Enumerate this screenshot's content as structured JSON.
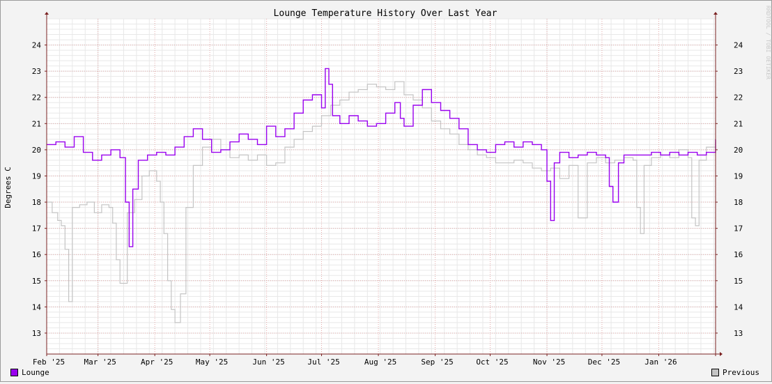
{
  "chart_data": {
    "type": "line",
    "title": "Lounge Temperature History Over Last Year",
    "ylabel": "Degrees C",
    "watermark": "RRDTOOL / TOBI OETIKER",
    "ylim": [
      12.2,
      25.0
    ],
    "xlim": [
      0,
      365
    ],
    "yticks": [
      13,
      14,
      15,
      16,
      17,
      18,
      19,
      20,
      21,
      22,
      23,
      24
    ],
    "xticks": [
      {
        "day": 0,
        "label": "Feb '25"
      },
      {
        "day": 28,
        "label": "Mar '25"
      },
      {
        "day": 59,
        "label": "Apr '25"
      },
      {
        "day": 89,
        "label": "May '25"
      },
      {
        "day": 120,
        "label": "Jun '25"
      },
      {
        "day": 150,
        "label": "Jul '25"
      },
      {
        "day": 181,
        "label": "Aug '25"
      },
      {
        "day": 212,
        "label": "Sep '25"
      },
      {
        "day": 242,
        "label": "Oct '25"
      },
      {
        "day": 273,
        "label": "Nov '25"
      },
      {
        "day": 303,
        "label": "Dec '25"
      },
      {
        "day": 334,
        "label": "Jan '26"
      }
    ],
    "colors": {
      "lounge": "#9900ee",
      "previous": "#c4c4c4",
      "major_grid": "#e3a7a7",
      "minor_grid": "#e8e8e8",
      "axis": "#7a2020"
    },
    "series": [
      {
        "name": "Lounge",
        "x": [
          0,
          5,
          10,
          15,
          20,
          25,
          30,
          35,
          40,
          43,
          45,
          47,
          50,
          55,
          60,
          65,
          70,
          75,
          80,
          85,
          90,
          95,
          100,
          105,
          110,
          115,
          120,
          125,
          130,
          135,
          140,
          145,
          150,
          152,
          154,
          156,
          160,
          165,
          170,
          175,
          180,
          185,
          190,
          193,
          195,
          200,
          205,
          210,
          215,
          220,
          225,
          230,
          235,
          240,
          245,
          250,
          255,
          260,
          265,
          270,
          273,
          275,
          277,
          280,
          285,
          290,
          295,
          300,
          305,
          307,
          309,
          312,
          315,
          320,
          325,
          330,
          335,
          340,
          345,
          350,
          355,
          360,
          365
        ],
        "y": [
          20.2,
          20.3,
          20.1,
          20.5,
          19.9,
          19.6,
          19.8,
          20.0,
          19.7,
          18.0,
          16.3,
          18.5,
          19.6,
          19.8,
          19.9,
          19.8,
          20.1,
          20.5,
          20.8,
          20.4,
          19.9,
          20.0,
          20.3,
          20.6,
          20.4,
          20.2,
          20.9,
          20.5,
          20.8,
          21.4,
          21.9,
          22.1,
          21.6,
          23.1,
          22.5,
          21.3,
          21.0,
          21.3,
          21.1,
          20.9,
          21.0,
          21.4,
          21.8,
          21.2,
          20.9,
          21.7,
          22.3,
          21.8,
          21.5,
          21.2,
          20.8,
          20.2,
          20.0,
          19.9,
          20.2,
          20.3,
          20.1,
          20.3,
          20.2,
          20.0,
          18.8,
          17.3,
          19.5,
          19.9,
          19.7,
          19.8,
          19.9,
          19.8,
          19.7,
          18.6,
          18.0,
          19.5,
          19.8,
          19.8,
          19.8,
          19.9,
          19.8,
          19.9,
          19.8,
          19.9,
          19.8,
          19.9,
          20.4
        ]
      },
      {
        "name": "Previous",
        "x": [
          0,
          3,
          6,
          8,
          10,
          12,
          14,
          18,
          22,
          26,
          30,
          34,
          36,
          38,
          40,
          44,
          48,
          52,
          56,
          60,
          62,
          64,
          66,
          68,
          70,
          73,
          76,
          80,
          85,
          90,
          95,
          100,
          105,
          110,
          115,
          120,
          125,
          130,
          135,
          140,
          145,
          150,
          155,
          160,
          165,
          170,
          175,
          180,
          185,
          190,
          195,
          200,
          205,
          210,
          215,
          220,
          225,
          230,
          235,
          240,
          245,
          250,
          255,
          260,
          265,
          270,
          275,
          280,
          285,
          290,
          295,
          300,
          305,
          310,
          315,
          320,
          322,
          324,
          326,
          330,
          335,
          340,
          345,
          350,
          352,
          354,
          356,
          360,
          365
        ],
        "y": [
          18.0,
          17.6,
          17.3,
          17.1,
          16.2,
          14.2,
          17.8,
          17.9,
          18.0,
          17.6,
          17.9,
          17.8,
          17.2,
          15.8,
          14.9,
          17.6,
          18.1,
          19.0,
          19.2,
          18.8,
          18.0,
          16.8,
          15.0,
          13.9,
          13.4,
          14.5,
          17.8,
          19.4,
          20.1,
          20.4,
          20.0,
          19.7,
          19.8,
          19.6,
          19.8,
          19.4,
          19.5,
          20.1,
          20.4,
          20.7,
          20.9,
          21.3,
          21.7,
          21.9,
          22.2,
          22.3,
          22.5,
          22.4,
          22.3,
          22.6,
          22.1,
          21.9,
          21.6,
          21.1,
          20.8,
          20.6,
          20.2,
          20.0,
          19.8,
          19.7,
          19.5,
          19.5,
          19.6,
          19.5,
          19.3,
          19.2,
          19.3,
          18.9,
          19.4,
          17.4,
          19.5,
          19.7,
          19.5,
          19.6,
          19.7,
          19.6,
          17.8,
          16.8,
          19.4,
          19.7,
          19.8,
          19.7,
          20.0,
          19.7,
          17.4,
          17.1,
          19.6,
          20.1,
          20.3
        ]
      }
    ]
  },
  "legend": {
    "lounge_label": "Lounge",
    "previous_label": "Previous"
  }
}
